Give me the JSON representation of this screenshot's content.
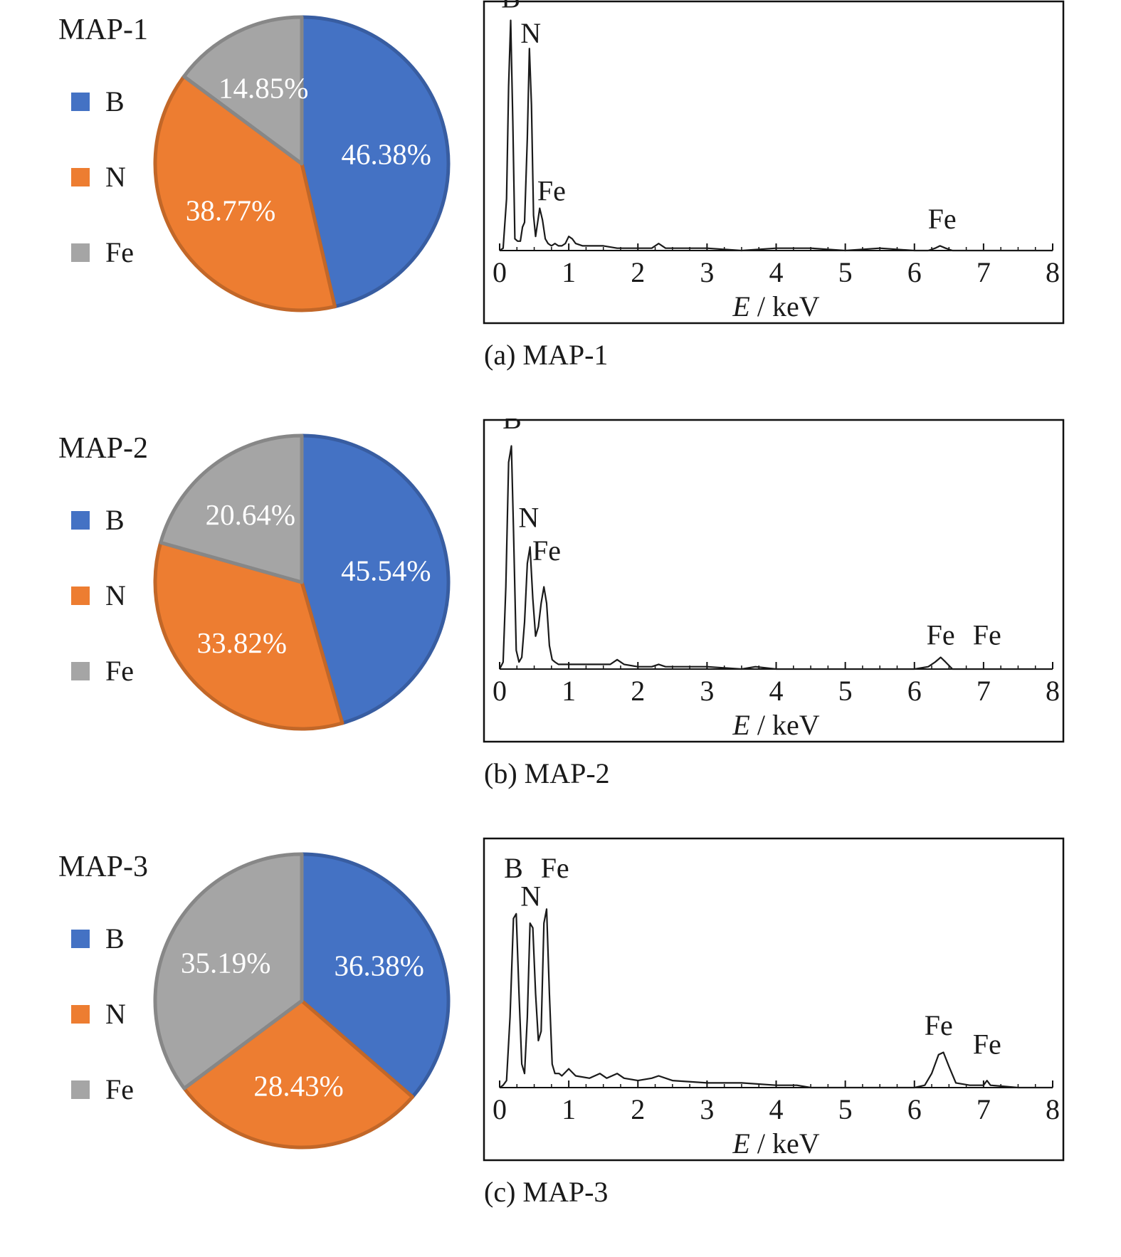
{
  "colors": {
    "B": "#4472C4",
    "N": "#ED7D31",
    "Fe": "#A5A5A5"
  },
  "chart_data": [
    {
      "type": "pie",
      "title": "MAP-1",
      "legend": [
        "B",
        "N",
        "Fe"
      ],
      "slices": [
        {
          "label": "B",
          "value": 46.38,
          "text": "46.38%"
        },
        {
          "label": "N",
          "value": 38.77,
          "text": "38.77%"
        },
        {
          "label": "Fe",
          "value": 14.85,
          "text": "14.85%"
        }
      ]
    },
    {
      "type": "line",
      "caption": "(a) MAP-1",
      "xlabel_italic": "E",
      "xlabel_rest": " / keV",
      "xlim": [
        0,
        8
      ],
      "x_ticks": [
        "0",
        "1",
        "2",
        "3",
        "4",
        "5",
        "6",
        "7",
        "8"
      ],
      "ylim": [
        0,
        100
      ],
      "peak_labels": [
        {
          "text": "B",
          "x": 0.16,
          "y": 101
        },
        {
          "text": "N",
          "x": 0.45,
          "y": 86
        },
        {
          "text": "Fe",
          "x": 0.75,
          "y": 19
        },
        {
          "text": "Fe",
          "x": 6.4,
          "y": 7
        }
      ],
      "series": [
        {
          "x": [
            0.0,
            0.05,
            0.1,
            0.13,
            0.16,
            0.19,
            0.22,
            0.26,
            0.3,
            0.33,
            0.36,
            0.4,
            0.43,
            0.46,
            0.49,
            0.52,
            0.55,
            0.58,
            0.62,
            0.66,
            0.7,
            0.75,
            0.8,
            0.85,
            0.9,
            0.95,
            1.0,
            1.05,
            1.1,
            1.2,
            1.35,
            1.5,
            1.7,
            2.0,
            2.2,
            2.3,
            2.4,
            2.6,
            3.0,
            3.5,
            4.0,
            4.5,
            5.0,
            5.5,
            6.0,
            6.2,
            6.3,
            6.37,
            6.45,
            6.55,
            7.0,
            7.5,
            8.0
          ],
          "y": [
            0,
            1,
            22,
            70,
            98,
            55,
            5,
            4,
            4,
            10,
            12,
            48,
            86,
            62,
            15,
            6,
            12,
            18,
            13,
            5,
            3,
            2,
            3,
            2,
            2,
            3,
            6,
            5,
            3,
            2,
            2,
            2,
            1,
            1,
            1,
            3,
            1,
            1,
            1,
            0,
            1,
            1,
            0,
            1,
            0,
            0,
            1,
            2,
            1,
            0,
            0,
            0,
            0
          ]
        }
      ]
    },
    {
      "type": "pie",
      "title": "MAP-2",
      "legend": [
        "B",
        "N",
        "Fe"
      ],
      "slices": [
        {
          "label": "B",
          "value": 45.54,
          "text": "45.54%"
        },
        {
          "label": "N",
          "value": 33.82,
          "text": "33.82%"
        },
        {
          "label": "Fe",
          "value": 20.64,
          "text": "20.64%"
        }
      ]
    },
    {
      "type": "line",
      "caption": "(b) MAP-2",
      "xlabel_italic": "E",
      "xlabel_rest": " / keV",
      "xlim": [
        0,
        8
      ],
      "x_ticks": [
        "0",
        "1",
        "2",
        "3",
        "4",
        "5",
        "6",
        "7",
        "8"
      ],
      "ylim": [
        0,
        100
      ],
      "peak_labels": [
        {
          "text": "B",
          "x": 0.18,
          "y": 100
        },
        {
          "text": "N",
          "x": 0.42,
          "y": 58
        },
        {
          "text": "Fe",
          "x": 0.68,
          "y": 44
        },
        {
          "text": "Fe",
          "x": 6.38,
          "y": 8
        },
        {
          "text": "Fe",
          "x": 7.05,
          "y": 8
        }
      ],
      "series": [
        {
          "x": [
            0.0,
            0.05,
            0.09,
            0.13,
            0.17,
            0.2,
            0.24,
            0.28,
            0.32,
            0.36,
            0.4,
            0.44,
            0.48,
            0.52,
            0.56,
            0.6,
            0.64,
            0.68,
            0.72,
            0.76,
            0.8,
            0.85,
            0.9,
            1.0,
            1.2,
            1.5,
            1.6,
            1.7,
            1.8,
            2.0,
            2.2,
            2.3,
            2.4,
            2.6,
            3.0,
            3.5,
            3.7,
            4.0,
            4.5,
            5.0,
            5.5,
            6.0,
            6.2,
            6.3,
            6.38,
            6.45,
            6.55,
            6.7,
            7.0,
            7.5,
            8.0
          ],
          "y": [
            0,
            3,
            35,
            88,
            95,
            60,
            8,
            3,
            5,
            20,
            45,
            52,
            30,
            14,
            18,
            28,
            35,
            28,
            10,
            4,
            3,
            2,
            2,
            2,
            2,
            2,
            2,
            4,
            2,
            1,
            1,
            2,
            1,
            1,
            1,
            0,
            1,
            0,
            0,
            0,
            0,
            0,
            1,
            3,
            5,
            3,
            0,
            0,
            0,
            0,
            0
          ]
        }
      ]
    },
    {
      "type": "pie",
      "title": "MAP-3",
      "legend": [
        "B",
        "N",
        "Fe"
      ],
      "slices": [
        {
          "label": "B",
          "value": 36.38,
          "text": "36.38%"
        },
        {
          "label": "N",
          "value": 28.43,
          "text": "28.43%"
        },
        {
          "label": "Fe",
          "value": 35.19,
          "text": "35.19%"
        }
      ]
    },
    {
      "type": "line",
      "caption": "(c) MAP-3",
      "xlabel_italic": "E",
      "xlabel_rest": " / keV",
      "xlim": [
        0,
        8
      ],
      "x_ticks": [
        "0",
        "1",
        "2",
        "3",
        "4",
        "5",
        "6",
        "7",
        "8"
      ],
      "ylim": [
        0,
        100
      ],
      "peak_labels": [
        {
          "text": "B",
          "x": 0.2,
          "y": 87
        },
        {
          "text": "N",
          "x": 0.45,
          "y": 75
        },
        {
          "text": "Fe",
          "x": 0.8,
          "y": 87
        },
        {
          "text": "Fe",
          "x": 6.35,
          "y": 20
        },
        {
          "text": "Fe",
          "x": 7.05,
          "y": 12
        }
      ],
      "series": [
        {
          "x": [
            0.0,
            0.05,
            0.1,
            0.15,
            0.2,
            0.24,
            0.28,
            0.32,
            0.36,
            0.4,
            0.44,
            0.48,
            0.52,
            0.56,
            0.6,
            0.64,
            0.68,
            0.72,
            0.76,
            0.8,
            0.86,
            0.9,
            1.0,
            1.1,
            1.3,
            1.45,
            1.55,
            1.7,
            1.8,
            2.0,
            2.2,
            2.3,
            2.5,
            3.0,
            3.5,
            4.0,
            4.3,
            4.5,
            5.0,
            5.5,
            6.0,
            6.15,
            6.25,
            6.35,
            6.42,
            6.5,
            6.6,
            6.8,
            7.0,
            7.05,
            7.1,
            7.5,
            8.0
          ],
          "y": [
            0,
            1,
            3,
            30,
            72,
            74,
            40,
            10,
            6,
            30,
            70,
            68,
            40,
            20,
            24,
            70,
            76,
            40,
            10,
            6,
            6,
            5,
            8,
            5,
            4,
            6,
            4,
            6,
            4,
            3,
            4,
            5,
            3,
            2,
            2,
            1,
            1,
            0,
            0,
            0,
            0,
            1,
            6,
            14,
            15,
            9,
            2,
            1,
            1,
            3,
            1,
            0,
            0
          ]
        }
      ]
    }
  ]
}
